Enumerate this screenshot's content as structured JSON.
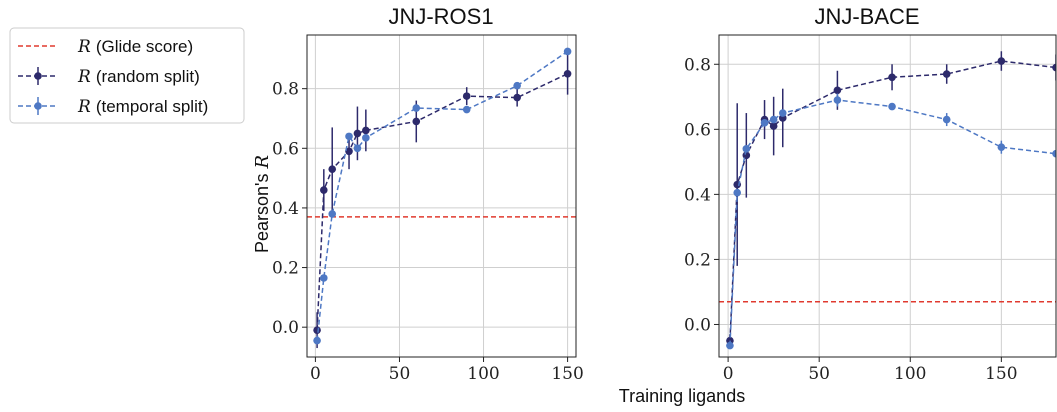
{
  "chart_data": [
    {
      "type": "line",
      "title": "JNJ-ROS1",
      "xlabel": "Training ligands",
      "ylabel_prefix": "Pearson's",
      "ylabel_var": "R",
      "xlim": [
        -5,
        155
      ],
      "ylim": [
        -0.1,
        0.98
      ],
      "xticks": [
        0,
        50,
        100,
        150
      ],
      "yticks": [
        0.0,
        0.2,
        0.4,
        0.6,
        0.8
      ],
      "grid": true,
      "reference": {
        "name": "R (Glide score)",
        "value": 0.37,
        "color": "#e03a2f"
      },
      "series": [
        {
          "name": "R (random split)",
          "color": "#2d2a6b",
          "x": [
            1,
            5,
            10,
            20,
            25,
            30,
            60,
            90,
            120,
            150
          ],
          "y": [
            -0.01,
            0.46,
            0.53,
            0.59,
            0.65,
            0.66,
            0.69,
            0.775,
            0.77,
            0.85
          ],
          "err": [
            0.06,
            0.07,
            0.14,
            0.06,
            0.09,
            0.07,
            0.07,
            0.03,
            0.03,
            0.07
          ]
        },
        {
          "name": "R (temporal split)",
          "color": "#4e78c4",
          "x": [
            1,
            5,
            10,
            20,
            25,
            30,
            60,
            90,
            120,
            150
          ],
          "y": [
            -0.045,
            0.165,
            0.38,
            0.64,
            0.6,
            0.635,
            0.735,
            0.73,
            0.81,
            0.925
          ],
          "err": [
            0,
            0,
            0,
            0,
            0,
            0,
            0,
            0,
            0,
            0
          ]
        }
      ]
    },
    {
      "type": "line",
      "title": "JNJ-BACE",
      "xlabel": "Training ligands",
      "xlim": [
        -5,
        180
      ],
      "ylim": [
        -0.1,
        0.89
      ],
      "xticks": [
        0,
        50,
        100,
        150
      ],
      "yticks": [
        0.0,
        0.2,
        0.4,
        0.6,
        0.8
      ],
      "grid": true,
      "reference": {
        "name": "R (Glide score)",
        "value": 0.07,
        "color": "#e03a2f"
      },
      "series": [
        {
          "name": "R (random split)",
          "color": "#2d2a6b",
          "x": [
            1,
            5,
            10,
            20,
            25,
            30,
            60,
            90,
            120,
            150,
            180
          ],
          "y": [
            -0.05,
            0.43,
            0.52,
            0.63,
            0.61,
            0.635,
            0.72,
            0.76,
            0.77,
            0.81,
            0.79
          ],
          "err": [
            0.02,
            0.25,
            0.13,
            0.06,
            0.09,
            0.09,
            0.06,
            0.04,
            0.03,
            0.03,
            0.04
          ]
        },
        {
          "name": "R (temporal split)",
          "color": "#4e78c4",
          "x": [
            1,
            5,
            10,
            20,
            25,
            30,
            60,
            90,
            120,
            150,
            180
          ],
          "y": [
            -0.065,
            0.405,
            0.54,
            0.62,
            0.63,
            0.65,
            0.69,
            0.67,
            0.63,
            0.545,
            0.525
          ],
          "err": [
            0,
            0,
            0,
            0,
            0,
            0,
            0.02,
            0,
            0.02,
            0.02,
            0.01
          ]
        }
      ]
    }
  ],
  "legend": {
    "placement": "left",
    "items": [
      {
        "var": "R",
        "text": "(Glide score)",
        "style": "ref"
      },
      {
        "var": "R",
        "text": "(random split)",
        "style": "random"
      },
      {
        "var": "R",
        "text": "(temporal split)",
        "style": "temporal"
      }
    ]
  }
}
